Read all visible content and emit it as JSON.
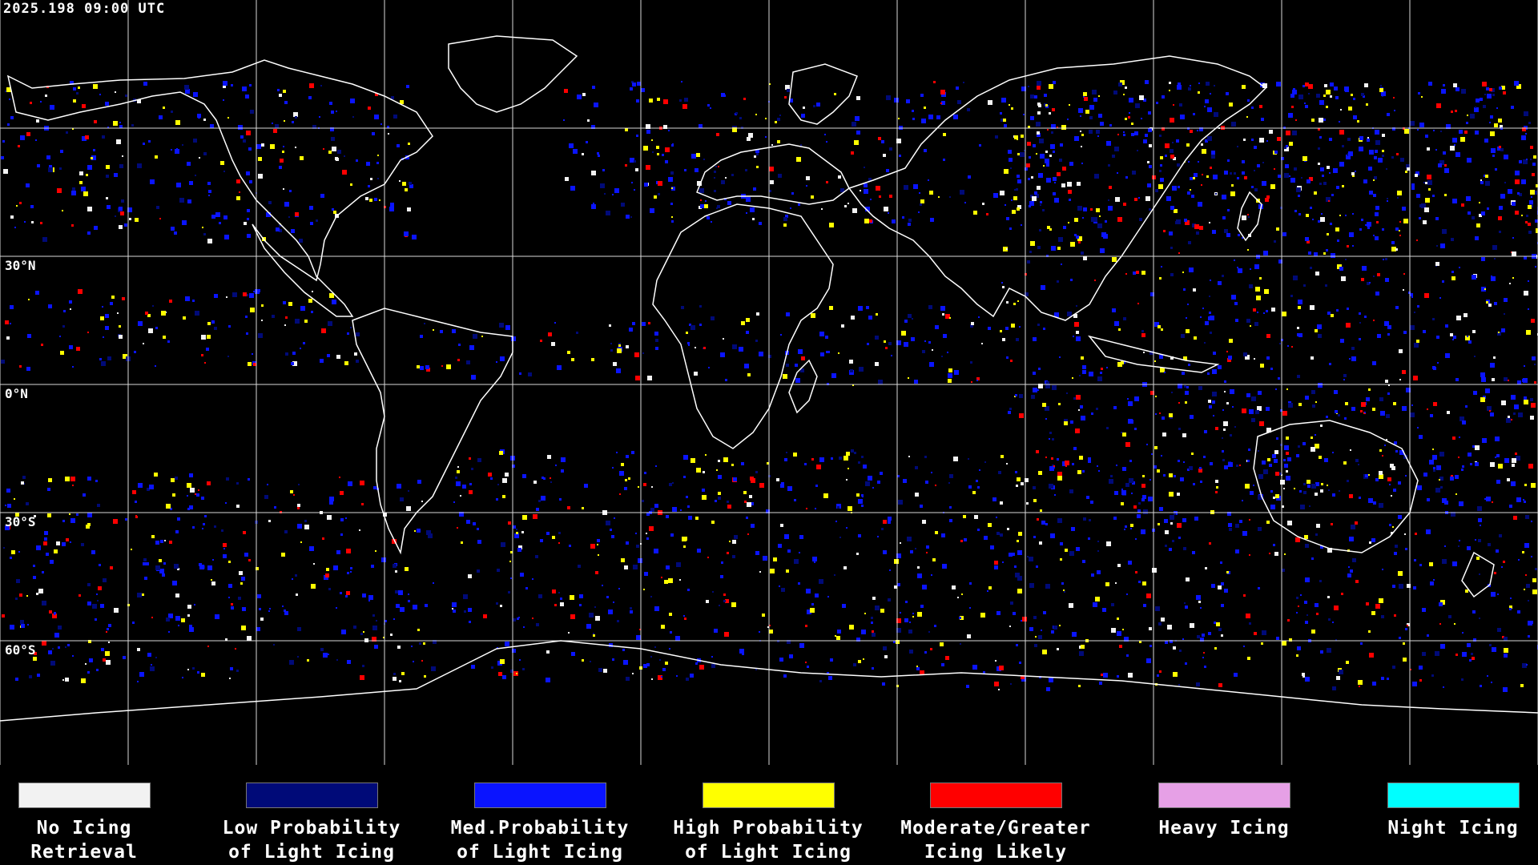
{
  "header": {
    "timestamp": "2025.198 09:00 UTC"
  },
  "map": {
    "projection": "equirectangular-global",
    "background_color": "#000000",
    "gridline_color": "#ffffff",
    "coastline_color": "#ffffff",
    "lat_labels": [
      "30°N",
      "0°N",
      "30°S",
      "60°S"
    ]
  },
  "legend": {
    "items": [
      {
        "line1": "No Icing",
        "line2": "Retrieval",
        "color": "#f2f2f2"
      },
      {
        "line1": "Low Probability",
        "line2": "of Light Icing",
        "color": "#000a78"
      },
      {
        "line1": "Med.Probability",
        "line2": "of Light Icing",
        "color": "#0a14ff"
      },
      {
        "line1": "High Probability",
        "line2": "of Light Icing",
        "color": "#ffff00"
      },
      {
        "line1": "Moderate/Greater",
        "line2": "Icing Likely",
        "color": "#ff0000"
      },
      {
        "line1": "Heavy Icing",
        "line2": "",
        "color": "#e6a0e6"
      },
      {
        "line1": "Night Icing",
        "line2": "",
        "color": "#00ffff"
      }
    ]
  }
}
